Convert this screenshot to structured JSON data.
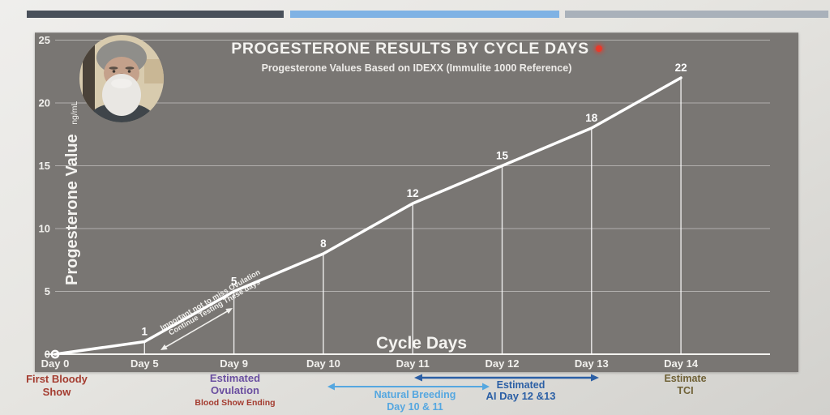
{
  "chart": {
    "title": "PROGESTERONE RESULTS BY CYCLE DAYS",
    "subtitle": "Progesterone Values Based on IDEXX (Immulite 1000 Reference)",
    "x_axis_title": "Cycle Days",
    "y_axis_title": "Progesterone Value",
    "y_axis_unit": "ng/mL"
  },
  "chart_data": {
    "type": "line",
    "categories": [
      "Day 0",
      "Day 5",
      "Day 9",
      "Day 10",
      "Day 11",
      "Day 12",
      "Day 13",
      "Day 14"
    ],
    "values": [
      0,
      1,
      5,
      8,
      12,
      15,
      18,
      22
    ],
    "title": "PROGESTERONE RESULTS BY CYCLE DAYS",
    "subtitle": "Progesterone Values Based on IDEXX (Immulite 1000 Reference)",
    "xlabel": "Cycle Days",
    "ylabel": "Progesterone Value ng/mL",
    "ylim": [
      0,
      25
    ],
    "y_ticks": [
      0,
      5,
      10,
      15,
      20,
      25
    ],
    "grid": "horizontal",
    "legend": "none",
    "line_color": "#ffffff",
    "data_labels_shown": [
      null,
      1,
      5,
      8,
      12,
      15,
      18,
      22
    ],
    "annotation": {
      "line1": "Important not to miss Ovulation",
      "line2": "Continue Testing These days"
    }
  },
  "colors": {
    "panel_bg": "#797673",
    "bar_dark": "#49505a",
    "bar_blue": "#7fb2e4",
    "bar_gray": "#a9b1ba",
    "title_dot": "#e8392a",
    "line": "#ffffff",
    "first_bloody_red": "#a43c30",
    "ovulation_purple": "#6a4fa0",
    "natural_breeding_blue": "#55a7e0",
    "ai_blue": "#2b5fa5",
    "tci_olive": "#6f6136"
  },
  "annotations_below": {
    "first_bloody_show": {
      "line1": "First Bloody",
      "line2": "Show"
    },
    "estimated_ovulation": {
      "line1": "Estimated",
      "line2": "Ovulation",
      "line3": "Blood Show Ending"
    },
    "natural_breeding": {
      "line1": "Natural Breeding",
      "line2": "Day 10 & 11"
    },
    "estimated_ai": {
      "line1": "Estimated",
      "line2": "AI Day 12 &13"
    },
    "estimate_tci": {
      "line1": "Estimate",
      "line2": "TCI"
    }
  }
}
